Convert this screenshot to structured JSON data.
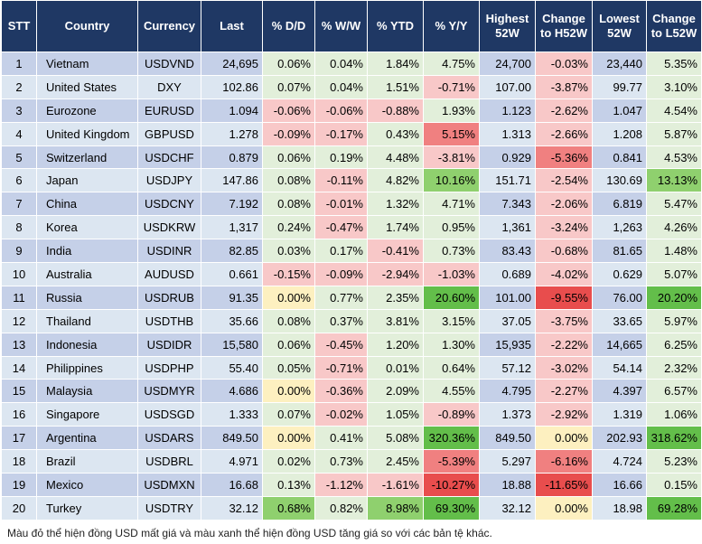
{
  "headers": [
    "STT",
    "Country",
    "Currency",
    "Last",
    "% D/D",
    "% W/W",
    "% YTD",
    "% Y/Y",
    "Highest 52W",
    "Change to H52W",
    "Lowest 52W",
    "Change to L52W"
  ],
  "rows": [
    {
      "stt": "1",
      "country": "Vietnam",
      "currency": "USDVND",
      "last": "24,695",
      "dd": "0.06%",
      "ww": "0.04%",
      "ytd": "1.84%",
      "yy": "4.75%",
      "high": "24,700",
      "chh": "-0.03%",
      "low": "23,440",
      "chl": "5.35%"
    },
    {
      "stt": "2",
      "country": "United States",
      "currency": "DXY",
      "last": "102.86",
      "dd": "0.07%",
      "ww": "0.04%",
      "ytd": "1.51%",
      "yy": "-0.71%",
      "high": "107.00",
      "chh": "-3.87%",
      "low": "99.77",
      "chl": "3.10%"
    },
    {
      "stt": "3",
      "country": "Eurozone",
      "currency": "EURUSD",
      "last": "1.094",
      "dd": "-0.06%",
      "ww": "-0.06%",
      "ytd": "-0.88%",
      "yy": "1.93%",
      "high": "1.123",
      "chh": "-2.62%",
      "low": "1.047",
      "chl": "4.54%"
    },
    {
      "stt": "4",
      "country": "United Kingdom",
      "currency": "GBPUSD",
      "last": "1.278",
      "dd": "-0.09%",
      "ww": "-0.17%",
      "ytd": "0.43%",
      "yy": "5.15%",
      "high": "1.313",
      "chh": "-2.66%",
      "low": "1.208",
      "chl": "5.87%"
    },
    {
      "stt": "5",
      "country": "Switzerland",
      "currency": "USDCHF",
      "last": "0.879",
      "dd": "0.06%",
      "ww": "0.19%",
      "ytd": "4.48%",
      "yy": "-3.81%",
      "high": "0.929",
      "chh": "-5.36%",
      "low": "0.841",
      "chl": "4.53%"
    },
    {
      "stt": "6",
      "country": "Japan",
      "currency": "USDJPY",
      "last": "147.86",
      "dd": "0.08%",
      "ww": "-0.11%",
      "ytd": "4.82%",
      "yy": "10.16%",
      "high": "151.71",
      "chh": "-2.54%",
      "low": "130.69",
      "chl": "13.13%"
    },
    {
      "stt": "7",
      "country": "China",
      "currency": "USDCNY",
      "last": "7.192",
      "dd": "0.08%",
      "ww": "-0.01%",
      "ytd": "1.32%",
      "yy": "4.71%",
      "high": "7.343",
      "chh": "-2.06%",
      "low": "6.819",
      "chl": "5.47%"
    },
    {
      "stt": "8",
      "country": "Korea",
      "currency": "USDKRW",
      "last": "1,317",
      "dd": "0.24%",
      "ww": "-0.47%",
      "ytd": "1.74%",
      "yy": "0.95%",
      "high": "1,361",
      "chh": "-3.24%",
      "low": "1,263",
      "chl": "4.26%"
    },
    {
      "stt": "9",
      "country": "India",
      "currency": "USDINR",
      "last": "82.85",
      "dd": "0.03%",
      "ww": "0.17%",
      "ytd": "-0.41%",
      "yy": "0.73%",
      "high": "83.43",
      "chh": "-0.68%",
      "low": "81.65",
      "chl": "1.48%"
    },
    {
      "stt": "10",
      "country": "Australia",
      "currency": "AUDUSD",
      "last": "0.661",
      "dd": "-0.15%",
      "ww": "-0.09%",
      "ytd": "-2.94%",
      "yy": "-1.03%",
      "high": "0.689",
      "chh": "-4.02%",
      "low": "0.629",
      "chl": "5.07%"
    },
    {
      "stt": "11",
      "country": "Russia",
      "currency": "USDRUB",
      "last": "91.35",
      "dd": "0.00%",
      "ww": "0.77%",
      "ytd": "2.35%",
      "yy": "20.60%",
      "high": "101.00",
      "chh": "-9.55%",
      "low": "76.00",
      "chl": "20.20%"
    },
    {
      "stt": "12",
      "country": "Thailand",
      "currency": "USDTHB",
      "last": "35.66",
      "dd": "0.08%",
      "ww": "0.37%",
      "ytd": "3.81%",
      "yy": "3.15%",
      "high": "37.05",
      "chh": "-3.75%",
      "low": "33.65",
      "chl": "5.97%"
    },
    {
      "stt": "13",
      "country": "Indonesia",
      "currency": "USDIDR",
      "last": "15,580",
      "dd": "0.06%",
      "ww": "-0.45%",
      "ytd": "1.20%",
      "yy": "1.30%",
      "high": "15,935",
      "chh": "-2.22%",
      "low": "14,665",
      "chl": "6.25%"
    },
    {
      "stt": "14",
      "country": "Philippines",
      "currency": "USDPHP",
      "last": "55.40",
      "dd": "0.05%",
      "ww": "-0.71%",
      "ytd": "0.01%",
      "yy": "0.64%",
      "high": "57.12",
      "chh": "-3.02%",
      "low": "54.14",
      "chl": "2.32%"
    },
    {
      "stt": "15",
      "country": "Malaysia",
      "currency": "USDMYR",
      "last": "4.686",
      "dd": "0.00%",
      "ww": "-0.36%",
      "ytd": "2.09%",
      "yy": "4.55%",
      "high": "4.795",
      "chh": "-2.27%",
      "low": "4.397",
      "chl": "6.57%"
    },
    {
      "stt": "16",
      "country": "Singapore",
      "currency": "USDSGD",
      "last": "1.333",
      "dd": "0.07%",
      "ww": "-0.02%",
      "ytd": "1.05%",
      "yy": "-0.89%",
      "high": "1.373",
      "chh": "-2.92%",
      "low": "1.319",
      "chl": "1.06%"
    },
    {
      "stt": "17",
      "country": "Argentina",
      "currency": "USDARS",
      "last": "849.50",
      "dd": "0.00%",
      "ww": "0.41%",
      "ytd": "5.08%",
      "yy": "320.36%",
      "high": "849.50",
      "chh": "0.00%",
      "low": "202.93",
      "chl": "318.62%"
    },
    {
      "stt": "18",
      "country": "Brazil",
      "currency": "USDBRL",
      "last": "4.971",
      "dd": "0.02%",
      "ww": "0.73%",
      "ytd": "2.45%",
      "yy": "-5.39%",
      "high": "5.297",
      "chh": "-6.16%",
      "low": "4.724",
      "chl": "5.23%"
    },
    {
      "stt": "19",
      "country": "Mexico",
      "currency": "USDMXN",
      "last": "16.68",
      "dd": "0.13%",
      "ww": "-1.12%",
      "ytd": "-1.61%",
      "yy": "-10.27%",
      "high": "18.88",
      "chh": "-11.65%",
      "low": "16.66",
      "chl": "0.15%"
    },
    {
      "stt": "20",
      "country": "Turkey",
      "currency": "USDTRY",
      "last": "32.12",
      "dd": "0.68%",
      "ww": "0.82%",
      "ytd": "8.98%",
      "yy": "69.30%",
      "high": "32.12",
      "chh": "0.00%",
      "low": "18.98",
      "chl": "69.28%"
    }
  ],
  "footer": "Màu đỏ thể hiện đồng USD mất giá và màu xanh thể hiện đồng USD tăng giá so với các bản tệ khác.",
  "colors": {
    "header_bg": "#1f3864",
    "row_odd": "#c5d0e8",
    "row_even": "#dce6f1",
    "green_light": "#e2efda",
    "green_mid": "#8fd06e",
    "green_strong": "#63be4a",
    "red_light": "#f8c8c8",
    "red_mid": "#f08080",
    "red_strong": "#e84d4d",
    "yellow": "#fdf0c0"
  }
}
